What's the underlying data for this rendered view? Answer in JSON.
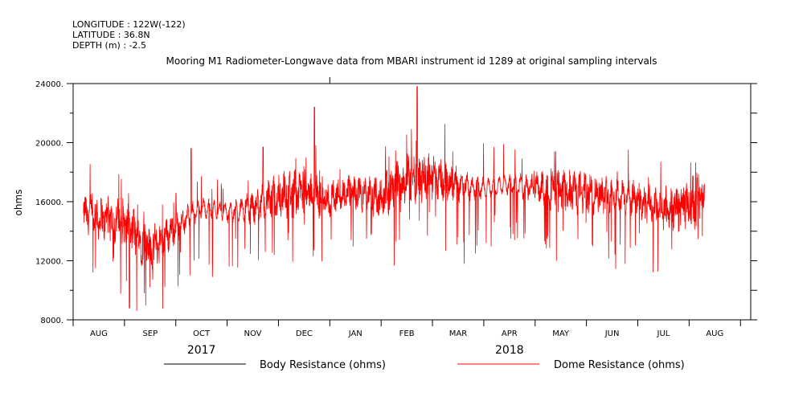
{
  "header": {
    "longitude": "LONGITUDE : 122W(-122)",
    "latitude": "LATITUDE : 36.8N",
    "depth": "DEPTH (m) : -2.5"
  },
  "chart_data": {
    "type": "line",
    "title": "Mooring M1 Radiometer-Longwave data from MBARI instrument id 1289 at original sampling intervals",
    "ylabel": "ohms",
    "xlabel": "",
    "ylim": [
      8000,
      24000
    ],
    "yticks": [
      8000,
      12000,
      16000,
      20000,
      24000
    ],
    "ytick_labels": [
      "8000.",
      "12000.",
      "16000.",
      "20000.",
      "24000."
    ],
    "y_minor_step": 2000,
    "x_months": [
      "AUG",
      "SEP",
      "OCT",
      "NOV",
      "DEC",
      "JAN",
      "FEB",
      "MAR",
      "APR",
      "MAY",
      "JUN",
      "JUL",
      "AUG"
    ],
    "x_years": [
      {
        "label": "2017",
        "month_index": 2.5
      },
      {
        "label": "2018",
        "month_index": 8.5
      }
    ],
    "x_range_months": [
      0,
      13.2
    ],
    "data_span_months": [
      0.2,
      12.3
    ],
    "legend": [
      {
        "label": "Body Resistance (ohms)",
        "color": "#000000"
      },
      {
        "label": "Dome Resistance (ohms)",
        "color": "#ff0000"
      }
    ],
    "series": [
      {
        "name": "Dome Resistance (ohms)",
        "color": "#ff0000",
        "approximate_trend": [
          [
            0.2,
            15200
          ],
          [
            0.6,
            14800
          ],
          [
            1.0,
            14500
          ],
          [
            1.5,
            12800
          ],
          [
            2.0,
            14300
          ],
          [
            2.5,
            15600
          ],
          [
            3.0,
            15300
          ],
          [
            3.5,
            15600
          ],
          [
            4.0,
            16400
          ],
          [
            4.5,
            16700
          ],
          [
            5.0,
            16100
          ],
          [
            5.5,
            16600
          ],
          [
            6.0,
            16300
          ],
          [
            6.5,
            17600
          ],
          [
            7.0,
            17800
          ],
          [
            7.5,
            17100
          ],
          [
            8.0,
            16900
          ],
          [
            8.5,
            17200
          ],
          [
            9.0,
            16900
          ],
          [
            9.5,
            16700
          ],
          [
            10.0,
            16600
          ],
          [
            10.5,
            16500
          ],
          [
            11.0,
            16100
          ],
          [
            11.5,
            15400
          ],
          [
            12.0,
            15800
          ],
          [
            12.3,
            16200
          ]
        ],
        "notable_points": [
          {
            "x": 1.1,
            "y": 8800,
            "label": "min"
          },
          {
            "x": 6.7,
            "y": 23800,
            "label": "max"
          },
          {
            "x": 4.7,
            "y": 22400
          },
          {
            "x": 3.7,
            "y": 19700
          },
          {
            "x": 2.3,
            "y": 19600
          }
        ]
      }
    ]
  }
}
